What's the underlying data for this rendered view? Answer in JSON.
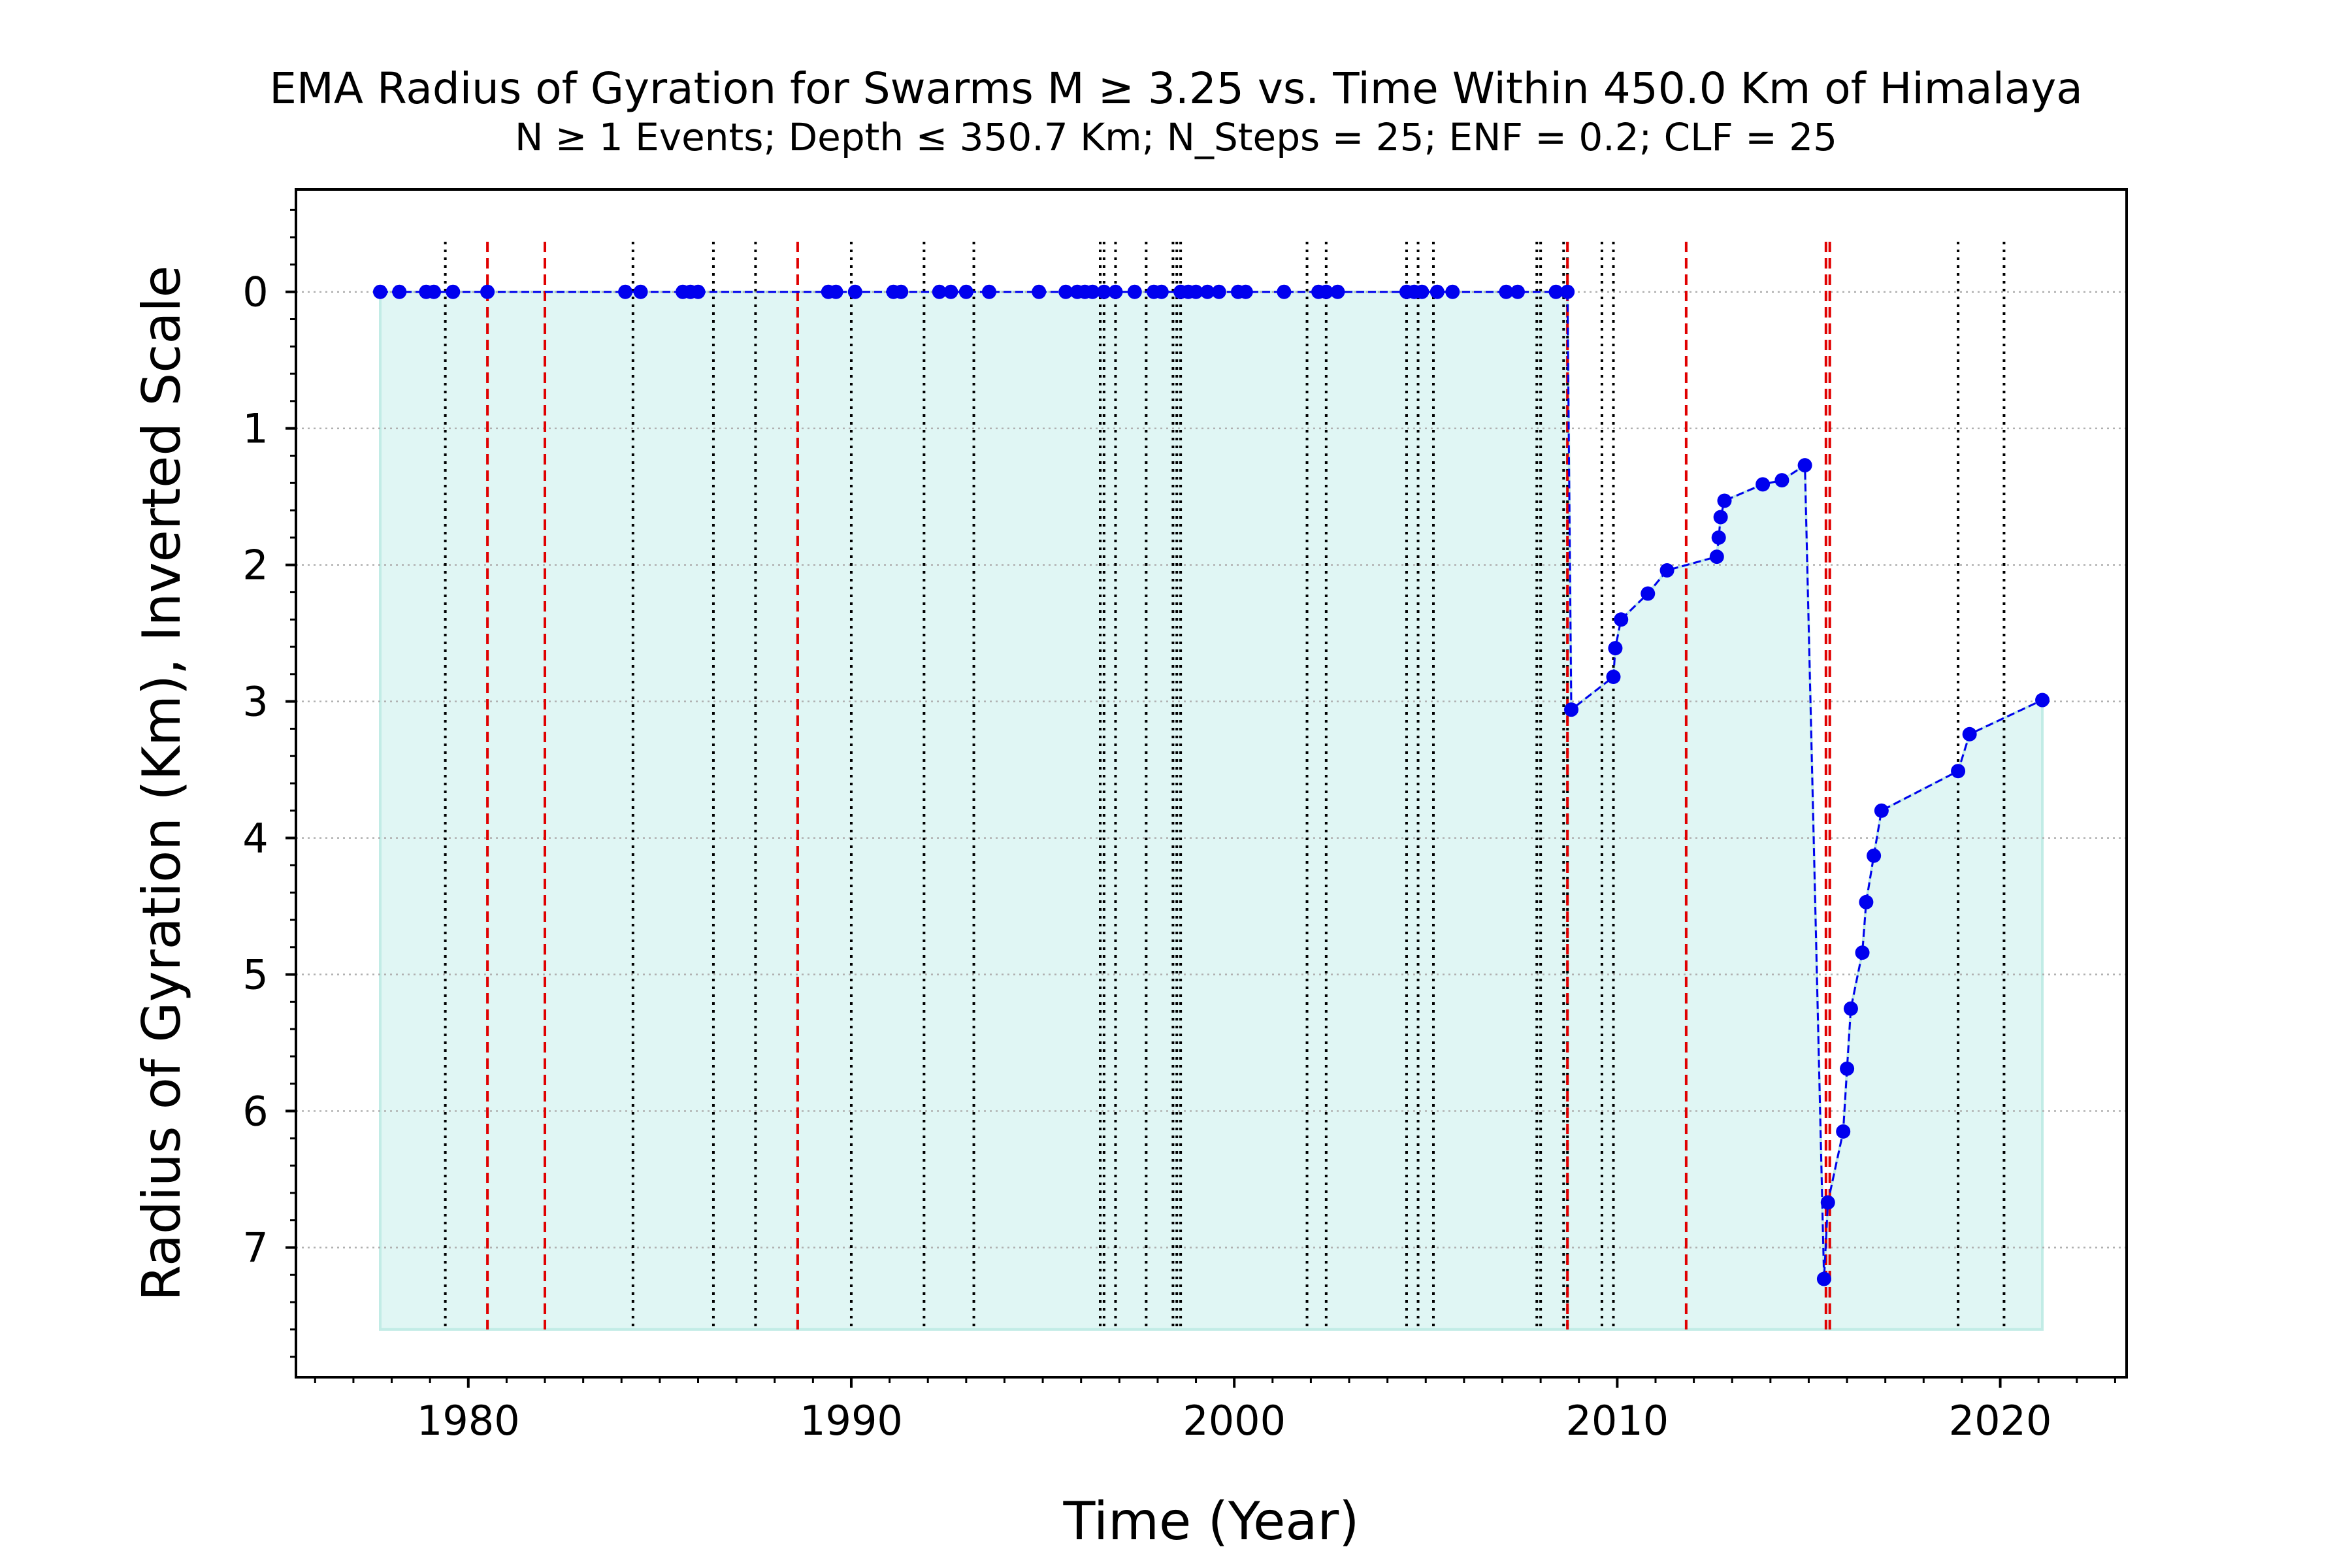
{
  "chart_data": {
    "type": "line",
    "title": "EMA Radius of Gyration for Swarms M ≥ 3.25 vs. Time Within 450.0 Km of Himalaya",
    "subtitle": "N ≥ 1 Events;  Depth ≤ 350.7 Km; N_Steps = 25; ENF = 0.2; CLF = 25",
    "xlabel": "Time (Year)",
    "ylabel": "Radius of Gyration (Km), Inverted Scale",
    "xlim": [
      1975.5,
      2023.3
    ],
    "ylim": [
      -0.75,
      7.95
    ],
    "y_inverted": true,
    "fill_base": 7.6,
    "xticks": [
      1980,
      1990,
      2000,
      2010,
      2020
    ],
    "xtick_labels": [
      "1980",
      "1990",
      "2000",
      "2010",
      "2020"
    ],
    "yticks": [
      0,
      1,
      2,
      3,
      4,
      5,
      6,
      7
    ],
    "ytick_labels": [
      "0",
      "1",
      "2",
      "3",
      "4",
      "5",
      "6",
      "7"
    ],
    "grid": "horizontal dotted",
    "colors": {
      "series": "#0000ee",
      "fill": "#e0f6f4",
      "fill_edge": "#c2ece6",
      "red_lines": "#e00000",
      "black_lines": "#000000",
      "grid": "#b0b0b0"
    },
    "series": [
      {
        "x": [
          1977.7,
          1978.2,
          1978.9,
          1979.1,
          1979.6,
          1980.5,
          1984.1,
          1984.5,
          1985.6,
          1985.8,
          1986.0,
          1989.4,
          1989.6,
          1990.1,
          1991.1,
          1991.3,
          1992.3,
          1992.6,
          1993.0,
          1993.6,
          1994.9,
          1995.6,
          1995.9,
          1996.1,
          1996.3,
          1996.6,
          1996.9,
          1997.4,
          1997.9,
          1998.1,
          1998.6,
          1998.8,
          1999.0,
          1999.3,
          1999.6,
          2000.1,
          2000.3,
          2001.3,
          2002.2,
          2002.4,
          2002.7,
          2004.5,
          2004.7,
          2004.9,
          2005.3,
          2005.7,
          2007.1,
          2007.4,
          2008.4,
          2008.7,
          2008.8,
          2009.9,
          2009.95,
          2010.1,
          2010.8,
          2011.3,
          2012.6,
          2012.65,
          2012.7,
          2012.8,
          2013.8,
          2014.3,
          2014.9,
          2015.4,
          2015.5,
          2015.9,
          2016.0,
          2016.1,
          2016.4,
          2016.5,
          2016.7,
          2016.9,
          2018.9,
          2019.2,
          2021.1
        ],
        "y": [
          0,
          0,
          0,
          0,
          0,
          0,
          0,
          0,
          0,
          0,
          0,
          0,
          0,
          0,
          0,
          0,
          0,
          0,
          0,
          0,
          0,
          0,
          0,
          0,
          0,
          0,
          0,
          0,
          0,
          0,
          0,
          0,
          0,
          0,
          0,
          0,
          0,
          0,
          0,
          0,
          0,
          0,
          0,
          0,
          0,
          0,
          0,
          0,
          0,
          0,
          3.06,
          2.82,
          2.61,
          2.4,
          2.21,
          2.04,
          1.94,
          1.8,
          1.65,
          1.53,
          1.41,
          1.38,
          1.27,
          7.23,
          6.67,
          6.15,
          5.69,
          5.25,
          4.84,
          4.47,
          4.13,
          3.8,
          3.51,
          3.24,
          2.99
        ]
      }
    ],
    "red_dashed_lines_x": [
      1980.5,
      1982.0,
      1988.6,
      2008.7,
      2011.8,
      2015.45,
      2015.55
    ],
    "black_dotted_lines_x": [
      1979.4,
      1984.3,
      1986.4,
      1987.5,
      1990.0,
      1991.9,
      1993.2,
      1996.5,
      1996.6,
      1996.9,
      1997.7,
      1998.4,
      1998.5,
      1998.6,
      2001.9,
      2002.4,
      2004.5,
      2004.8,
      2005.2,
      2007.9,
      2008.0,
      2008.6,
      2008.7,
      2009.6,
      2009.9,
      2018.9,
      2020.1
    ]
  }
}
